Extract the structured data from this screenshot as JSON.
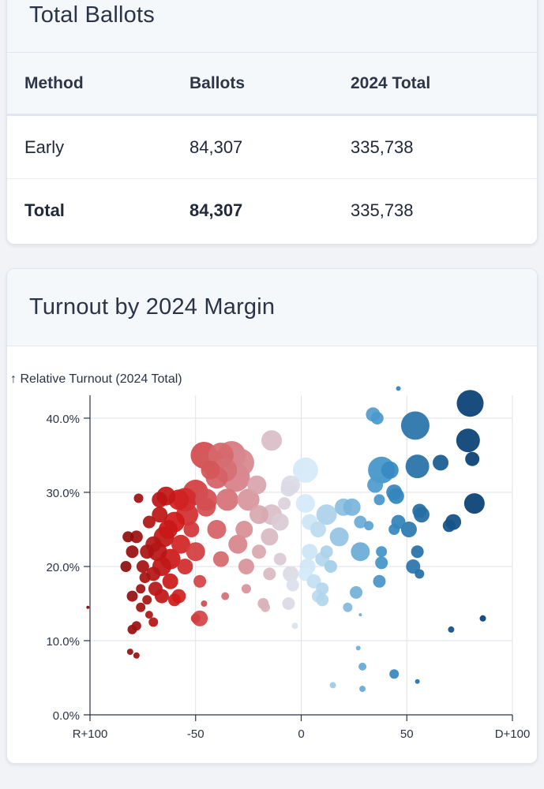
{
  "ballots_card": {
    "title": "Total Ballots",
    "headers": [
      "Method",
      "Ballots",
      "2024 Total"
    ],
    "rows": [
      {
        "method": "Early",
        "ballots": "84,307",
        "total": "335,738"
      },
      {
        "method": "Total",
        "ballots": "84,307",
        "total": "335,738"
      }
    ]
  },
  "turnout_card": {
    "title": "Turnout by 2024 Margin"
  },
  "chart_data": {
    "type": "scatter",
    "title": "Turnout by 2024 Margin",
    "ylabel": "↑ Relative Turnout (2024 Total)",
    "xlim": [
      -100,
      100
    ],
    "ylim": [
      0,
      45
    ],
    "x_ticks": [
      -100,
      -50,
      0,
      50,
      100
    ],
    "x_tick_labels": [
      "R+100",
      "-50",
      "0",
      "50",
      "D+100"
    ],
    "y_ticks": [
      0,
      10,
      20,
      30,
      40
    ],
    "y_tick_labels": [
      "0.0%",
      "10.0%",
      "20.0%",
      "30.0%",
      "40.0%"
    ],
    "grid": true,
    "color_scale": {
      "r_dark": "#7a0a0a",
      "r_mid": "#d11a1a",
      "neutral": "#dceefa",
      "d_mid": "#3b8fc6",
      "d_dark": "#063f73"
    },
    "points": [
      [
        -101,
        14.5,
        2
      ],
      [
        -81,
        8.5,
        4
      ],
      [
        -78,
        8,
        4
      ],
      [
        -80,
        11.5,
        6
      ],
      [
        -78,
        12,
        6
      ],
      [
        -76,
        14.5,
        6
      ],
      [
        -80,
        16,
        7
      ],
      [
        -83,
        20,
        7
      ],
      [
        -80,
        22,
        8
      ],
      [
        -78,
        24,
        8
      ],
      [
        -77,
        29.2,
        6
      ],
      [
        -82,
        24,
        7
      ],
      [
        -76,
        17,
        6
      ],
      [
        -74,
        18.5,
        7
      ],
      [
        -73,
        15.5,
        6
      ],
      [
        -72,
        13.5,
        5
      ],
      [
        -70,
        12.5,
        6
      ],
      [
        -75,
        20,
        8
      ],
      [
        -73,
        22,
        9
      ],
      [
        -72,
        26,
        8
      ],
      [
        -70,
        23,
        10
      ],
      [
        -70,
        19,
        9
      ],
      [
        -69,
        17,
        9
      ],
      [
        -68,
        22,
        12
      ],
      [
        -66,
        20,
        12
      ],
      [
        -65,
        24,
        13
      ],
      [
        -67,
        27,
        10
      ],
      [
        -67,
        29,
        10
      ],
      [
        -64,
        29.5,
        12
      ],
      [
        -63,
        25,
        12
      ],
      [
        -62,
        21,
        13
      ],
      [
        -62,
        18,
        10
      ],
      [
        -60,
        15.5,
        8
      ],
      [
        -58,
        16,
        9
      ],
      [
        -66,
        16,
        9
      ],
      [
        -60,
        26,
        13
      ],
      [
        -57,
        23,
        12
      ],
      [
        -55,
        20,
        10
      ],
      [
        -54,
        27,
        14
      ],
      [
        -52,
        25,
        10
      ],
      [
        -50,
        22,
        12
      ],
      [
        -48,
        18,
        8
      ],
      [
        -48,
        13,
        10
      ],
      [
        -50,
        13,
        6
      ],
      [
        -46,
        15,
        4
      ],
      [
        -50,
        30,
        16
      ],
      [
        -45,
        29,
        14
      ],
      [
        -43,
        33,
        12
      ],
      [
        -40,
        32,
        14
      ],
      [
        -46,
        35,
        17
      ],
      [
        -42,
        34,
        16
      ],
      [
        -38,
        35,
        16
      ],
      [
        -36,
        33,
        15
      ],
      [
        -33,
        35,
        18
      ],
      [
        -31,
        32,
        18
      ],
      [
        -29,
        34,
        18
      ],
      [
        -35,
        29,
        14
      ],
      [
        -40,
        25,
        12
      ],
      [
        -38,
        21,
        10
      ],
      [
        -30,
        23,
        12
      ],
      [
        -27,
        25,
        11
      ],
      [
        -25,
        29,
        14
      ],
      [
        -21,
        31,
        12
      ],
      [
        -26,
        20,
        10
      ],
      [
        -20,
        22,
        9
      ],
      [
        -15,
        24,
        11
      ],
      [
        -14,
        27,
        13
      ],
      [
        -10,
        26,
        11
      ],
      [
        -20,
        27,
        12
      ],
      [
        -45,
        28,
        12
      ],
      [
        -55,
        29,
        15
      ],
      [
        -58,
        29,
        13
      ],
      [
        -36,
        16,
        5
      ],
      [
        -26,
        17,
        6
      ],
      [
        -14,
        37,
        13
      ],
      [
        -15,
        19,
        8
      ],
      [
        -18,
        15,
        7
      ],
      [
        -17,
        14.5,
        6
      ],
      [
        -10,
        21,
        8
      ],
      [
        -8,
        28.5,
        8
      ],
      [
        -5,
        31,
        12
      ],
      [
        -6,
        30.5,
        10
      ],
      [
        -5,
        19,
        10
      ],
      [
        -4,
        17.5,
        8
      ],
      [
        -3,
        12,
        4
      ],
      [
        -6,
        15,
        8
      ],
      [
        2,
        33,
        16
      ],
      [
        2,
        28.5,
        12
      ],
      [
        4,
        26,
        10
      ],
      [
        8,
        25,
        10
      ],
      [
        4,
        22,
        10
      ],
      [
        2,
        19,
        9
      ],
      [
        3,
        20,
        10
      ],
      [
        6,
        18,
        9
      ],
      [
        8,
        16,
        8
      ],
      [
        10,
        21,
        9
      ],
      [
        12,
        27,
        13
      ],
      [
        10,
        15.5,
        8
      ],
      [
        14,
        20,
        8
      ],
      [
        10,
        17,
        8
      ],
      [
        12,
        22,
        8
      ],
      [
        18,
        24,
        12
      ],
      [
        20,
        28,
        11
      ],
      [
        24,
        28,
        11
      ],
      [
        28,
        26,
        8
      ],
      [
        32,
        25.5,
        6
      ],
      [
        28,
        22,
        12
      ],
      [
        26,
        16.5,
        8
      ],
      [
        22,
        14.5,
        6
      ],
      [
        28,
        13.5,
        2
      ],
      [
        27,
        9,
        3
      ],
      [
        29,
        6.5,
        5
      ],
      [
        29,
        3.5,
        4
      ],
      [
        15,
        4,
        4
      ],
      [
        35,
        31,
        10
      ],
      [
        38,
        33,
        17
      ],
      [
        34,
        40.5,
        9
      ],
      [
        36,
        40,
        8
      ],
      [
        42,
        33,
        11
      ],
      [
        37,
        29,
        7
      ],
      [
        44,
        30,
        10
      ],
      [
        46,
        26,
        9
      ],
      [
        44,
        25,
        7
      ],
      [
        38,
        22,
        7
      ],
      [
        38,
        20.5,
        8
      ],
      [
        37,
        18,
        8
      ],
      [
        44,
        5.5,
        6
      ],
      [
        55,
        4.5,
        3
      ],
      [
        45,
        29.5,
        10
      ],
      [
        46,
        44,
        3
      ],
      [
        54,
        39,
        18
      ],
      [
        55,
        33.5,
        15
      ],
      [
        51,
        25,
        10
      ],
      [
        55,
        22,
        8
      ],
      [
        53,
        20,
        9
      ],
      [
        57,
        27,
        10
      ],
      [
        56,
        19,
        6
      ],
      [
        56,
        27.5,
        9
      ],
      [
        66,
        34,
        10
      ],
      [
        72,
        26,
        10
      ],
      [
        70,
        25.5,
        8
      ],
      [
        71,
        11.5,
        4
      ],
      [
        79,
        37,
        15
      ],
      [
        80,
        42,
        17
      ],
      [
        81,
        34.5,
        9
      ],
      [
        82,
        28.5,
        13
      ],
      [
        86,
        13,
        4
      ]
    ]
  }
}
